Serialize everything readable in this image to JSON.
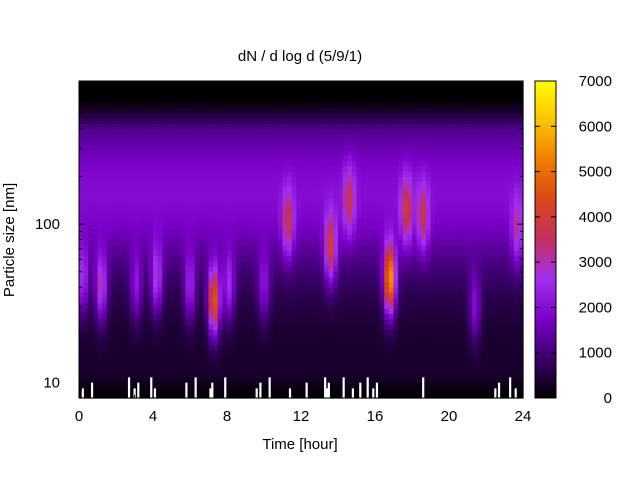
{
  "chart_data": {
    "type": "heatmap",
    "title": "dN / d log d (5/9/1)",
    "xlabel": "Time [hour]",
    "ylabel": "Particle size [nm]",
    "x_range": [
      0,
      24
    ],
    "x_ticks": [
      0,
      4,
      8,
      12,
      16,
      20,
      24
    ],
    "y_scale": "log",
    "y_range": [
      8,
      800
    ],
    "y_ticks": [
      10,
      100
    ],
    "colorbar": {
      "range": [
        0,
        7000
      ],
      "ticks": [
        0,
        1000,
        2000,
        3000,
        4000,
        5000,
        6000,
        7000
      ],
      "colormap": [
        "#000000",
        "#3a006a",
        "#7a00c8",
        "#a22ff0",
        "#c33060",
        "#d94818",
        "#f07c00",
        "#fbc300",
        "#ffff00"
      ]
    },
    "background_level": 1600,
    "features": [
      {
        "t": 0.2,
        "d": 45,
        "peak": 3300
      },
      {
        "t": 1.2,
        "d": 40,
        "peak": 3800
      },
      {
        "t": 3.1,
        "d": 40,
        "peak": 2900
      },
      {
        "t": 4.2,
        "d": 45,
        "peak": 3500
      },
      {
        "t": 6.0,
        "d": 40,
        "peak": 3200
      },
      {
        "t": 7.3,
        "d": 33,
        "peak": 5600
      },
      {
        "t": 8.1,
        "d": 40,
        "peak": 3300
      },
      {
        "t": 10.0,
        "d": 40,
        "peak": 2900
      },
      {
        "t": 11.3,
        "d": 100,
        "peak": 3500
      },
      {
        "t": 13.6,
        "d": 70,
        "peak": 4200
      },
      {
        "t": 14.6,
        "d": 140,
        "peak": 3300
      },
      {
        "t": 16.8,
        "d": 45,
        "peak": 6400
      },
      {
        "t": 17.7,
        "d": 120,
        "peak": 3600
      },
      {
        "t": 18.6,
        "d": 110,
        "peak": 3400
      },
      {
        "t": 21.4,
        "d": 30,
        "peak": 2900
      },
      {
        "t": 23.7,
        "d": 90,
        "peak": 3000
      }
    ],
    "missing_data_hours": [
      0.2,
      0.7,
      2.7,
      3.0,
      3.2,
      3.9,
      4.1,
      5.8,
      6.3,
      7.1,
      7.2,
      7.9,
      9.6,
      9.8,
      10.3,
      11.4,
      12.3,
      13.3,
      13.4,
      13.5,
      14.3,
      14.8,
      15.2,
      15.6,
      15.9,
      16.1,
      18.6,
      22.5,
      22.7,
      23.3,
      23.6
    ],
    "grid": false
  }
}
